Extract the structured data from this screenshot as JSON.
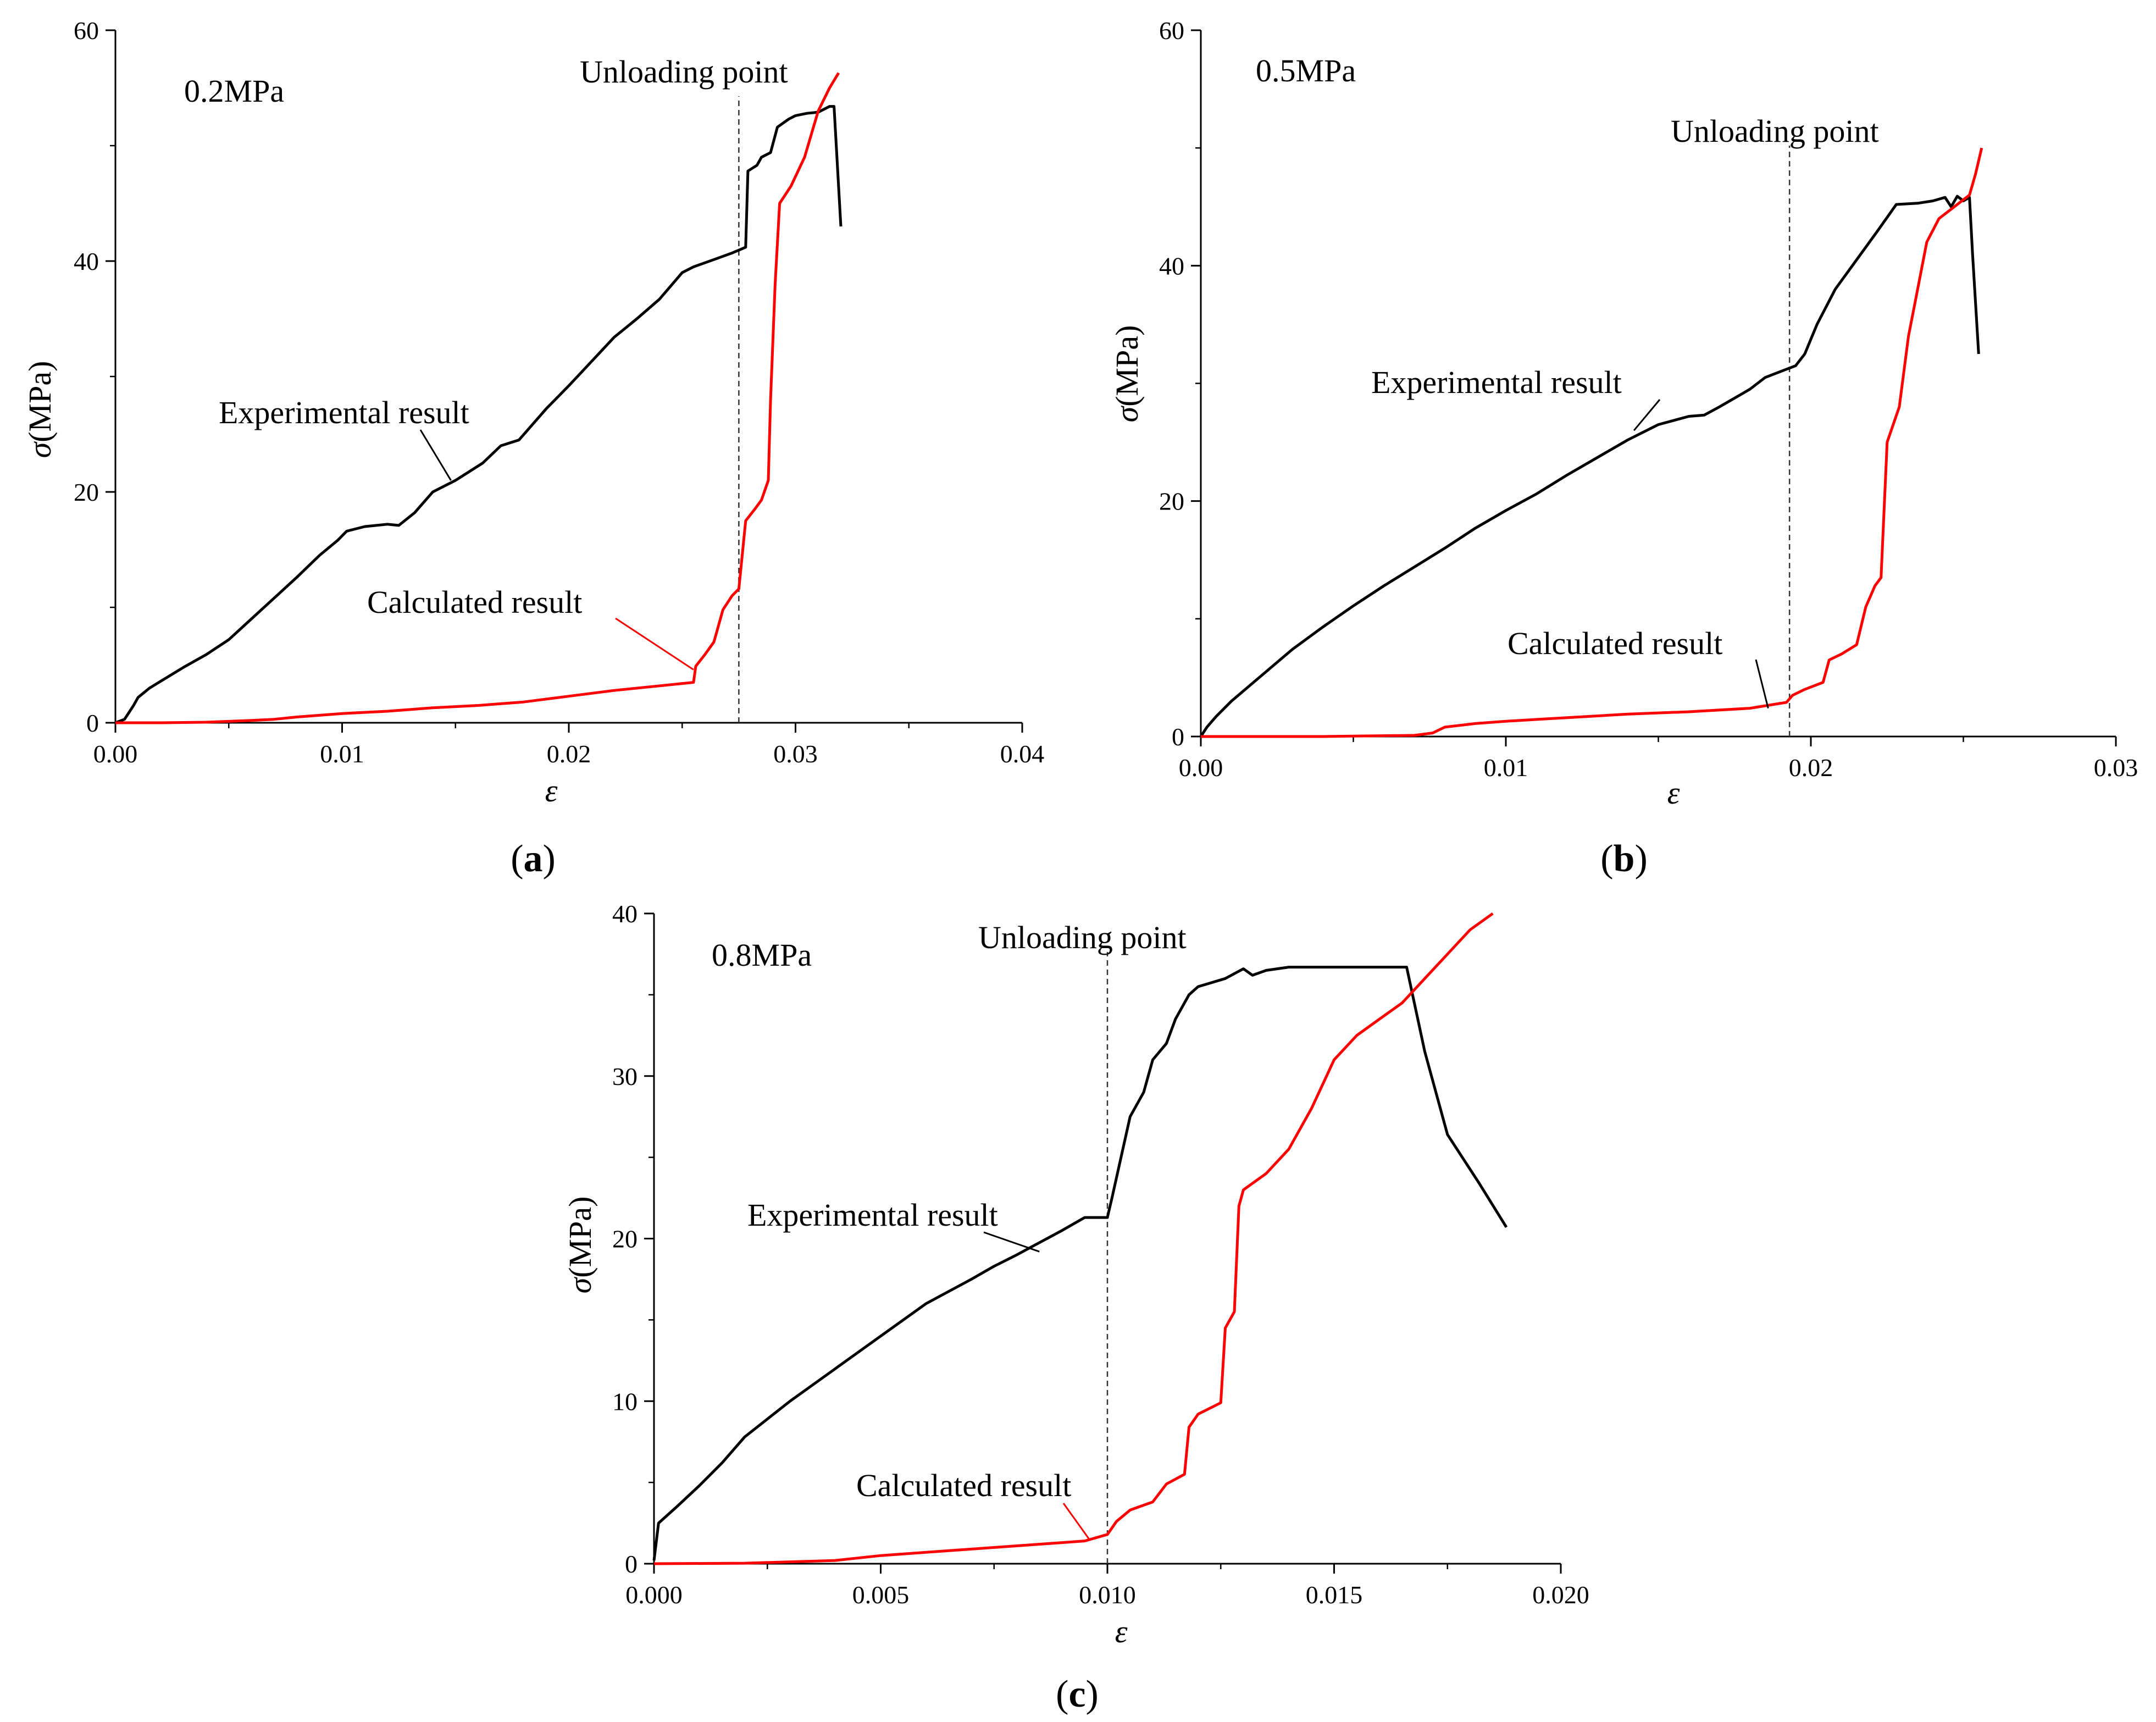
{
  "chart_data": [
    {
      "id": "a",
      "type": "line",
      "caption": "a",
      "pressure_label": "0.2MPa",
      "xlabel": "ε",
      "ylabel_symbol": "σ",
      "ylabel_unit": "(MPa)",
      "xlim": [
        0,
        0.04
      ],
      "ylim": [
        0,
        60
      ],
      "xticks": [
        0,
        0.01,
        0.02,
        0.03,
        0.04
      ],
      "xtick_labels": [
        "0.00",
        "0.01",
        "0.02",
        "0.03",
        "0.04"
      ],
      "yticks": [
        0,
        20,
        40,
        60
      ],
      "ytick_labels": [
        "0",
        "20",
        "40",
        "60"
      ],
      "unloading": {
        "x": 0.0275,
        "label": "Unloading point"
      },
      "annotations": {
        "experimental": {
          "text": "Experimental result",
          "target": [
            0.0148,
            21
          ]
        },
        "calculated": {
          "text": "Calculated result",
          "target": [
            0.0255,
            4.6
          ]
        }
      },
      "series": [
        {
          "name": "Experimental result",
          "color": "#000000",
          "points": [
            [
              0,
              0
            ],
            [
              0.0004,
              0.3
            ],
            [
              0.0006,
              0.9
            ],
            [
              0.0008,
              1.5
            ],
            [
              0.001,
              2.2
            ],
            [
              0.0015,
              3
            ],
            [
              0.002,
              3.6
            ],
            [
              0.003,
              4.8
            ],
            [
              0.004,
              5.9
            ],
            [
              0.005,
              7.2
            ],
            [
              0.006,
              9
            ],
            [
              0.007,
              10.8
            ],
            [
              0.008,
              12.6
            ],
            [
              0.009,
              14.5
            ],
            [
              0.0098,
              15.8
            ],
            [
              0.0102,
              16.6
            ],
            [
              0.011,
              17
            ],
            [
              0.012,
              17.2
            ],
            [
              0.0125,
              17.1
            ],
            [
              0.0132,
              18.2
            ],
            [
              0.014,
              20
            ],
            [
              0.015,
              21
            ],
            [
              0.0162,
              22.5
            ],
            [
              0.017,
              24
            ],
            [
              0.0178,
              24.5
            ],
            [
              0.019,
              27.2
            ],
            [
              0.02,
              29.2
            ],
            [
              0.021,
              31.3
            ],
            [
              0.022,
              33.4
            ],
            [
              0.023,
              35
            ],
            [
              0.024,
              36.7
            ],
            [
              0.025,
              39
            ],
            [
              0.0255,
              39.5
            ],
            [
              0.0265,
              40.2
            ],
            [
              0.0272,
              40.7
            ],
            [
              0.0278,
              41.2
            ],
            [
              0.0279,
              47.8
            ],
            [
              0.0283,
              48.3
            ],
            [
              0.0285,
              49
            ],
            [
              0.0289,
              49.4
            ],
            [
              0.0292,
              51.6
            ],
            [
              0.0297,
              52.3
            ],
            [
              0.03,
              52.6
            ],
            [
              0.0305,
              52.8
            ],
            [
              0.031,
              52.9
            ],
            [
              0.0315,
              53.4
            ],
            [
              0.0317,
              53.4
            ],
            [
              0.032,
              43
            ]
          ]
        },
        {
          "name": "Calculated result",
          "color": "#ff0000",
          "points": [
            [
              0,
              0
            ],
            [
              0.002,
              0
            ],
            [
              0.004,
              0.05
            ],
            [
              0.006,
              0.2
            ],
            [
              0.007,
              0.3
            ],
            [
              0.008,
              0.5
            ],
            [
              0.01,
              0.8
            ],
            [
              0.012,
              1
            ],
            [
              0.014,
              1.3
            ],
            [
              0.016,
              1.5
            ],
            [
              0.018,
              1.8
            ],
            [
              0.02,
              2.3
            ],
            [
              0.022,
              2.8
            ],
            [
              0.024,
              3.2
            ],
            [
              0.0255,
              3.5
            ],
            [
              0.0256,
              4.9
            ],
            [
              0.026,
              5.9
            ],
            [
              0.0264,
              7
            ],
            [
              0.0268,
              9.8
            ],
            [
              0.0272,
              11
            ],
            [
              0.0275,
              11.6
            ],
            [
              0.0278,
              17.5
            ],
            [
              0.0282,
              18.5
            ],
            [
              0.0285,
              19.3
            ],
            [
              0.0288,
              21
            ],
            [
              0.0289,
              28
            ],
            [
              0.0291,
              38
            ],
            [
              0.0293,
              45
            ],
            [
              0.0298,
              46.5
            ],
            [
              0.0304,
              49
            ],
            [
              0.031,
              53
            ],
            [
              0.0315,
              55
            ],
            [
              0.0319,
              56.3
            ]
          ]
        }
      ]
    },
    {
      "id": "b",
      "type": "line",
      "caption": "b",
      "pressure_label": "0.5MPa",
      "xlabel": "ε",
      "ylabel_symbol": "σ",
      "ylabel_unit": "(MPa)",
      "xlim": [
        0,
        0.03
      ],
      "ylim": [
        0,
        60
      ],
      "xticks": [
        0,
        0.01,
        0.02,
        0.03
      ],
      "xtick_labels": [
        "0.00",
        "0.01",
        "0.02",
        "0.03"
      ],
      "yticks": [
        0,
        20,
        40,
        60
      ],
      "ytick_labels": [
        "0",
        "20",
        "40",
        "60"
      ],
      "unloading": {
        "x": 0.0193,
        "label": "Unloading point"
      },
      "annotations": {
        "experimental": {
          "text": "Experimental result",
          "target": [
            0.0142,
            26
          ]
        },
        "calculated": {
          "text": "Calculated result",
          "target": [
            0.0186,
            2.4
          ]
        }
      },
      "series": [
        {
          "name": "Experimental result",
          "color": "#000000",
          "points": [
            [
              0,
              0
            ],
            [
              0.0002,
              0.8
            ],
            [
              0.0005,
              1.7
            ],
            [
              0.001,
              3
            ],
            [
              0.002,
              5.2
            ],
            [
              0.003,
              7.4
            ],
            [
              0.004,
              9.3
            ],
            [
              0.005,
              11.1
            ],
            [
              0.006,
              12.8
            ],
            [
              0.007,
              14.4
            ],
            [
              0.008,
              16
            ],
            [
              0.009,
              17.7
            ],
            [
              0.01,
              19.2
            ],
            [
              0.011,
              20.6
            ],
            [
              0.012,
              22.2
            ],
            [
              0.013,
              23.7
            ],
            [
              0.014,
              25.2
            ],
            [
              0.015,
              26.5
            ],
            [
              0.016,
              27.2
            ],
            [
              0.0165,
              27.3
            ],
            [
              0.017,
              28
            ],
            [
              0.018,
              29.5
            ],
            [
              0.0185,
              30.5
            ],
            [
              0.019,
              31
            ],
            [
              0.0195,
              31.5
            ],
            [
              0.0198,
              32.5
            ],
            [
              0.0202,
              35
            ],
            [
              0.0208,
              38
            ],
            [
              0.0215,
              40.5
            ],
            [
              0.0222,
              43
            ],
            [
              0.0228,
              45.2
            ],
            [
              0.0235,
              45.3
            ],
            [
              0.024,
              45.5
            ],
            [
              0.0244,
              45.8
            ],
            [
              0.0246,
              45
            ],
            [
              0.0248,
              45.9
            ],
            [
              0.025,
              45.5
            ],
            [
              0.0252,
              45.8
            ],
            [
              0.0253,
              41
            ],
            [
              0.0255,
              32.5
            ]
          ]
        },
        {
          "name": "Calculated result",
          "color": "#ff0000",
          "points": [
            [
              0,
              0
            ],
            [
              0.004,
              0
            ],
            [
              0.007,
              0.1
            ],
            [
              0.0076,
              0.3
            ],
            [
              0.008,
              0.8
            ],
            [
              0.009,
              1.1
            ],
            [
              0.01,
              1.3
            ],
            [
              0.012,
              1.6
            ],
            [
              0.014,
              1.9
            ],
            [
              0.016,
              2.1
            ],
            [
              0.018,
              2.4
            ],
            [
              0.0192,
              2.9
            ],
            [
              0.0194,
              3.5
            ],
            [
              0.0198,
              4
            ],
            [
              0.0204,
              4.6
            ],
            [
              0.0206,
              6.5
            ],
            [
              0.021,
              7
            ],
            [
              0.0215,
              7.8
            ],
            [
              0.0218,
              11
            ],
            [
              0.0221,
              12.8
            ],
            [
              0.0223,
              13.5
            ],
            [
              0.0225,
              25
            ],
            [
              0.0229,
              28
            ],
            [
              0.0232,
              34
            ],
            [
              0.0235,
              38
            ],
            [
              0.0238,
              42
            ],
            [
              0.0242,
              44
            ],
            [
              0.0247,
              45
            ],
            [
              0.0252,
              46
            ],
            [
              0.0254,
              47.8
            ],
            [
              0.0256,
              50
            ]
          ]
        }
      ]
    },
    {
      "id": "c",
      "type": "line",
      "caption": "c",
      "pressure_label": "0.8MPa",
      "xlabel": "ε",
      "ylabel_symbol": "σ",
      "ylabel_unit": "(MPa)",
      "xlim": [
        0,
        0.02
      ],
      "ylim": [
        0,
        40
      ],
      "xticks": [
        0,
        0.005,
        0.01,
        0.015,
        0.02
      ],
      "xtick_labels": [
        "0.000",
        "0.005",
        "0.010",
        "0.015",
        "0.020"
      ],
      "yticks": [
        0,
        10,
        20,
        30,
        40
      ],
      "ytick_labels": [
        "0",
        "10",
        "20",
        "30",
        "40"
      ],
      "unloading": {
        "x": 0.01,
        "label": "Unloading point"
      },
      "annotations": {
        "experimental": {
          "text": "Experimental result",
          "target": [
            0.0085,
            19.2
          ]
        },
        "calculated": {
          "text": "Calculated result",
          "target": [
            0.0096,
            1.5
          ]
        }
      },
      "series": [
        {
          "name": "Experimental result",
          "color": "#000000",
          "points": [
            [
              0,
              0.2
            ],
            [
              0.0001,
              2.5
            ],
            [
              0.0005,
              3.5
            ],
            [
              0.001,
              4.8
            ],
            [
              0.0015,
              6.2
            ],
            [
              0.002,
              7.8
            ],
            [
              0.003,
              10
            ],
            [
              0.004,
              12
            ],
            [
              0.005,
              14
            ],
            [
              0.006,
              16
            ],
            [
              0.007,
              17.5
            ],
            [
              0.0075,
              18.3
            ],
            [
              0.008,
              19
            ],
            [
              0.009,
              20.5
            ],
            [
              0.0095,
              21.3
            ],
            [
              0.01,
              21.3
            ],
            [
              0.0101,
              22.5
            ],
            [
              0.0103,
              25
            ],
            [
              0.0105,
              27.5
            ],
            [
              0.0108,
              29
            ],
            [
              0.011,
              31
            ],
            [
              0.0113,
              32
            ],
            [
              0.0115,
              33.5
            ],
            [
              0.0118,
              35
            ],
            [
              0.012,
              35.5
            ],
            [
              0.0126,
              36
            ],
            [
              0.013,
              36.6
            ],
            [
              0.0132,
              36.2
            ],
            [
              0.0135,
              36.5
            ],
            [
              0.014,
              36.7
            ],
            [
              0.015,
              36.7
            ],
            [
              0.016,
              36.7
            ],
            [
              0.0166,
              36.7
            ],
            [
              0.017,
              31.5
            ],
            [
              0.0175,
              26.4
            ],
            [
              0.0182,
              23.4
            ],
            [
              0.0188,
              20.7
            ]
          ]
        },
        {
          "name": "Calculated result",
          "color": "#ff0000",
          "points": [
            [
              0,
              0
            ],
            [
              0.002,
              0.03
            ],
            [
              0.004,
              0.2
            ],
            [
              0.005,
              0.5
            ],
            [
              0.006,
              0.7
            ],
            [
              0.007,
              0.9
            ],
            [
              0.008,
              1.1
            ],
            [
              0.009,
              1.3
            ],
            [
              0.0095,
              1.4
            ],
            [
              0.01,
              1.8
            ],
            [
              0.0102,
              2.6
            ],
            [
              0.0105,
              3.3
            ],
            [
              0.011,
              3.8
            ],
            [
              0.0113,
              4.9
            ],
            [
              0.0117,
              5.5
            ],
            [
              0.0118,
              8.4
            ],
            [
              0.012,
              9.2
            ],
            [
              0.0125,
              9.9
            ],
            [
              0.0126,
              14.5
            ],
            [
              0.0128,
              15.5
            ],
            [
              0.0129,
              22
            ],
            [
              0.013,
              23
            ],
            [
              0.0135,
              24
            ],
            [
              0.014,
              25.5
            ],
            [
              0.0145,
              28
            ],
            [
              0.015,
              31
            ],
            [
              0.0155,
              32.5
            ],
            [
              0.016,
              33.5
            ],
            [
              0.0165,
              34.5
            ],
            [
              0.017,
              36
            ],
            [
              0.0175,
              37.5
            ],
            [
              0.018,
              39
            ],
            [
              0.0185,
              40
            ]
          ]
        }
      ]
    }
  ]
}
